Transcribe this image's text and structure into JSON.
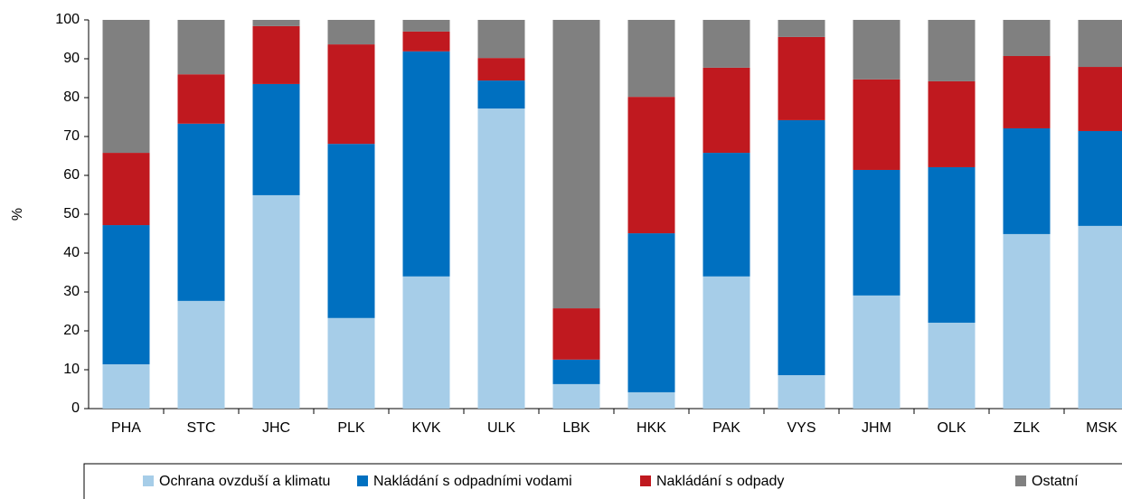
{
  "chart_data": {
    "type": "stacked_bar",
    "y_label": "%",
    "categories": [
      "PHA",
      "STC",
      "JHC",
      "PLK",
      "KVK",
      "ULK",
      "LBK",
      "HKK",
      "PAK",
      "VYS",
      "JHM",
      "OLK",
      "ZLK",
      "MSK"
    ],
    "series": [
      {
        "name": "Ochrana ovzduší a klimatu",
        "color": "#a6cde8",
        "values": [
          11.4,
          27.7,
          54.9,
          23.3,
          34,
          77.2,
          6.3,
          4.2,
          34,
          8.6,
          29.1,
          22.1,
          44.9,
          47
        ]
      },
      {
        "name": "Nakládání s odpadními vodami",
        "color": "#0070c0",
        "values": [
          35.8,
          45.6,
          28.6,
          44.8,
          57.9,
          7.2,
          6.3,
          40.9,
          31.8,
          65.6,
          32.3,
          40,
          27.2,
          24.4
        ]
      },
      {
        "name": "Nakládání s odpady",
        "color": "#c0191f",
        "values": [
          18.6,
          12.7,
          14.9,
          25.6,
          5.1,
          5.8,
          13.2,
          35.1,
          21.9,
          21.4,
          23.3,
          22.1,
          18.6,
          16.5
        ]
      },
      {
        "name": "Ostatní",
        "color": "#808080",
        "values": [
          34.2,
          14,
          1.6,
          6.3,
          3,
          9.8,
          74.2,
          19.8,
          12.3,
          4.4,
          15.3,
          15.8,
          9.3,
          12.1
        ]
      }
    ],
    "ylim": [
      0,
      100
    ],
    "yticks": [
      0,
      10,
      20,
      30,
      40,
      50,
      60,
      70,
      80,
      90,
      100
    ],
    "grid": false
  }
}
